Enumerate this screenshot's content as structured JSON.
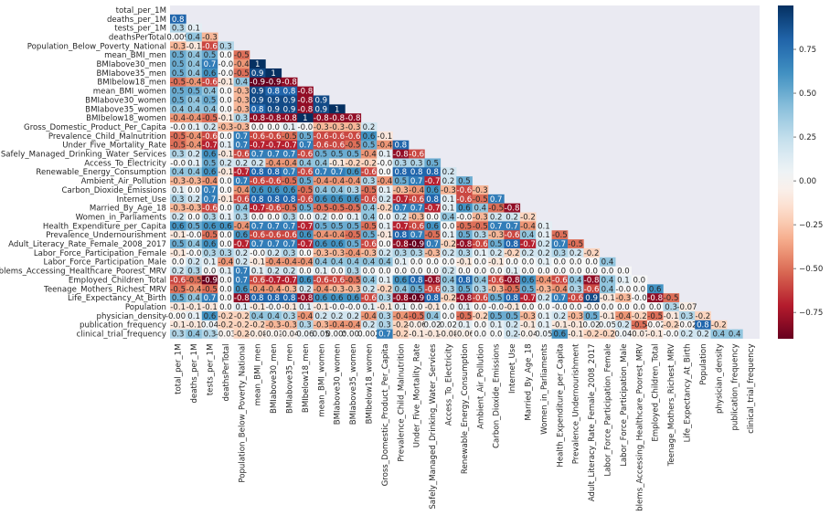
{
  "chart_data": {
    "type": "heatmap",
    "title": "",
    "variables": [
      "total_per_1M",
      "deaths_per_1M",
      "tests_per_1M",
      "deathsPerTotal",
      "Population_Below_Poverty_National",
      "mean_BMI_men",
      "BMIabove30_men",
      "BMIabove35_men",
      "BMIbelow18_men",
      "mean_BMI_women",
      "BMIabove30_women",
      "BMIabove35_women",
      "BMIbelow18_women",
      "Gross_Domestic_Product_Per_Capita",
      "Prevalence_Child_Malnutrition",
      "Under_Five_Mortality_Rate",
      "Safely_Managed_Drinking_Water_Services",
      "Access_To_Electricity",
      "Renewable_Energy_Consumption",
      "Ambient_Air_Pollution",
      "Carbon_Dioxide_Emissions",
      "Internet_Use",
      "Married_By_Age_18",
      "Women_in_Parliaments",
      "Health_Expenditure_per_Capita",
      "Prevalence_Undernourishment",
      "Adult_Literacy_Rate_Female_2008_2017",
      "Labor_Force_Participation_Female",
      "Labor_Force_Participation_Male",
      "Problems_Accessing_Healthcare_Poorest_MRV",
      "Employed_Children_Total",
      "Teenage_Mothers_Richest_MRV",
      "Life_Expectancy_At_Birth",
      "Population",
      "physician_density",
      "publication_frequency",
      "clinical_trial_frequency"
    ],
    "mask": "upper triangle including diagonal",
    "values": [
      [],
      [
        "0.8"
      ],
      [
        "0.3",
        "0.1"
      ],
      [
        "0.009",
        "0.4",
        "-0.3"
      ],
      [
        "-0.3",
        "-0.1",
        "-0.6",
        "0.3"
      ],
      [
        "0.5",
        "0.4",
        "0.5",
        "0.0",
        "-0.5"
      ],
      [
        "0.5",
        "0.4",
        "0.7",
        "-0.0",
        "-0.4",
        "1"
      ],
      [
        "0.5",
        "0.4",
        "0.6",
        "-0.0",
        "-0.5",
        "0.9",
        "1"
      ],
      [
        "-0.5",
        "-0.4",
        "-0.6",
        "-0.1",
        "0.4",
        "-0.9",
        "-0.9",
        "-0.8"
      ],
      [
        "0.5",
        "0.5",
        "0.4",
        "0.0",
        "-0.3",
        "0.9",
        "0.8",
        "0.8",
        "-0.8"
      ],
      [
        "0.5",
        "0.4",
        "0.5",
        "0.0",
        "-0.3",
        "0.9",
        "0.9",
        "0.9",
        "-0.8",
        "0.9"
      ],
      [
        "0.4",
        "0.4",
        "0.4",
        "0.0",
        "-0.3",
        "0.8",
        "0.9",
        "0.9",
        "-0.8",
        "0.9",
        "1"
      ],
      [
        "-0.4",
        "-0.4",
        "-0.5",
        "-0.1",
        "0.3",
        "-0.8",
        "-0.8",
        "-0.8",
        "1",
        "-0.8",
        "-0.8",
        "-0.8"
      ],
      [
        "-0.0",
        "0.1",
        "0.2",
        "-0.3",
        "-0.3",
        "0.0",
        "0.0",
        "0.1",
        "-0.0",
        "-0.3",
        "-0.3",
        "-0.3",
        "0.2"
      ],
      [
        "-0.5",
        "-0.4",
        "-0.6",
        "0.0",
        "0.7",
        "-0.6",
        "-0.6",
        "-0.5",
        "0.5",
        "-0.6",
        "-0.6",
        "-0.6",
        "0.6",
        "-0.1"
      ],
      [
        "-0.5",
        "-0.4",
        "-0.7",
        "0.1",
        "0.7",
        "-0.7",
        "-0.7",
        "-0.7",
        "0.7",
        "-0.6",
        "-0.6",
        "-0.5",
        "0.5",
        "-0.4",
        "0.8"
      ],
      [
        "0.3",
        "0.2",
        "0.6",
        "-0.1",
        "-0.6",
        "0.7",
        "0.7",
        "0.7",
        "-0.6",
        "0.5",
        "0.5",
        "0.5",
        "-0.4",
        "0.1",
        "-0.8",
        "-0.6"
      ],
      [
        "-0.0",
        "0.1",
        "0.5",
        "0.2",
        "0.2",
        "0.2",
        "-0.4",
        "-0.4",
        "0.4",
        "0.4",
        "-0.1",
        "-0.2",
        "-0.2",
        "-0.0",
        "0.3",
        "0.3",
        "0.5"
      ],
      [
        "0.4",
        "0.4",
        "0.6",
        "-0.1",
        "-0.7",
        "0.8",
        "0.8",
        "0.7",
        "-0.6",
        "0.7",
        "0.7",
        "0.6",
        "-0.6",
        "0.0",
        "0.8",
        "0.8",
        "0.8",
        "0.2"
      ],
      [
        "-0.3",
        "-0.3",
        "-0.4",
        "0.0",
        "0.7",
        "-0.6",
        "-0.6",
        "-0.5",
        "0.5",
        "-0.4",
        "-0.4",
        "-0.4",
        "0.3",
        "-0.4",
        "0.5",
        "0.7",
        "-0.7",
        "0.2",
        "0.5"
      ],
      [
        "0.1",
        "0.0",
        "0.7",
        "0.0",
        "-0.4",
        "0.6",
        "0.6",
        "0.6",
        "-0.5",
        "0.4",
        "0.4",
        "0.3",
        "-0.5",
        "0.1",
        "-0.3",
        "-0.4",
        "0.6",
        "-0.3",
        "-0.6",
        "-0.3"
      ],
      [
        "0.3",
        "0.2",
        "0.7",
        "-0.1",
        "-0.6",
        "0.8",
        "0.8",
        "0.8",
        "-0.6",
        "0.6",
        "0.6",
        "0.6",
        "-0.6",
        "0.2",
        "-0.7",
        "-0.6",
        "0.8",
        "0.1",
        "-0.6",
        "-0.5",
        "0.7"
      ],
      [
        "-0.3",
        "-0.3",
        "-0.6",
        "0.0",
        "0.4",
        "-0.7",
        "-0.6",
        "-0.5",
        "0.5",
        "-0.5",
        "-0.5",
        "-0.5",
        "0.4",
        "-0.2",
        "0.7",
        "0.7",
        "-0.7",
        "0.1",
        "0.6",
        "0.4",
        "-0.5",
        "-0.8"
      ],
      [
        "0.2",
        "0.0",
        "0.3",
        "0.1",
        "0.3",
        "0.0",
        "0.0",
        "0.3",
        "0.0",
        "0.2",
        "0.0",
        "0.1",
        "0.4",
        "0.0",
        "0.2",
        "-0.3",
        "0.0",
        "0.4",
        "-0.0",
        "-0.3",
        "0.2",
        "0.2",
        "-0.2"
      ],
      [
        "0.6",
        "0.5",
        "0.6",
        "0.6",
        "-0.4",
        "0.7",
        "0.7",
        "0.7",
        "-0.7",
        "0.5",
        "0.5",
        "0.5",
        "-0.5",
        "0.1",
        "-0.7",
        "-0.6",
        "0.6",
        "0.0",
        "-0.5",
        "-0.5",
        "0.7",
        "0.7",
        "-0.4",
        "0.1"
      ],
      [
        "-0.1",
        "-0.0",
        "-0.5",
        "0.0",
        "0.6",
        "-0.6",
        "-0.6",
        "-0.6",
        "0.6",
        "-0.4",
        "-0.4",
        "-0.5",
        "0.5",
        "-0.1",
        "0.8",
        "0.7",
        "-0.5",
        "0.1",
        "0.5",
        "0.3",
        "-0.3",
        "-0.6",
        "0.4",
        "0.1",
        "-0.5"
      ],
      [
        "0.5",
        "0.4",
        "0.6",
        "0.0",
        "-0.7",
        "0.7",
        "0.7",
        "0.7",
        "-0.7",
        "0.6",
        "0.6",
        "0.5",
        "-0.6",
        "0.0",
        "-0.8",
        "-0.9",
        "0.7",
        "-0.2",
        "-0.8",
        "-0.6",
        "0.5",
        "0.8",
        "-0.7",
        "0.2",
        "0.7",
        "-0.5"
      ],
      [
        "-0.1",
        "-0.0",
        "0.3",
        "0.3",
        "0.2",
        "-0.0",
        "0.2",
        "0.3",
        "0.0",
        "-0.3",
        "-0.3",
        "-0.4",
        "-0.3",
        "0.2",
        "0.3",
        "0.3",
        "-0.3",
        "0.2",
        "0.3",
        "0.1",
        "0.2",
        "-0.2",
        "0.2",
        "0.2",
        "0.3",
        "0.2",
        "-0.2"
      ],
      [
        "0.0",
        "0.2",
        "0.1",
        "-0.4",
        "0.2",
        "-0.1",
        "-0.4",
        "-0.4",
        "-0.4",
        "0.4",
        "0.4",
        "0.4",
        "0.4",
        "0.4",
        "0.1",
        "0.0",
        "0.0",
        "0.0",
        "-0.1",
        "0.0",
        "-0.1",
        "0.0",
        "0.0",
        "0.1",
        "0.0",
        "0.0",
        "0.0",
        "0.4"
      ],
      [
        "0.2",
        "0.3",
        "0.0",
        "0.1",
        "0.7",
        "0.1",
        "0.2",
        "0.2",
        "0.0",
        "0.1",
        "0.0",
        "0.3",
        "0.0",
        "0.0",
        "0.0",
        "0.0",
        "0.0",
        "0.2",
        "0.0",
        "0.0",
        "0.0",
        "0.1",
        "0.0",
        "0.0",
        "0.0",
        "0.0",
        "0.0",
        "0.0",
        "0.0"
      ],
      [
        "-0.6",
        "-0.5",
        "-0.9",
        "0.0",
        "0.7",
        "-0.6",
        "-0.7",
        "-0.7",
        "0.6",
        "-0.6",
        "-0.6",
        "-0.5",
        "0.4",
        "0.1",
        "0.6",
        "0.8",
        "-0.8",
        "0.4",
        "0.8",
        "0.4",
        "-0.6",
        "-0.8",
        "0.6",
        "-0.4",
        "-0.6",
        "0.4",
        "-0.8",
        "0.4",
        "0.1",
        "0.0"
      ],
      [
        "-0.5",
        "-0.4",
        "-0.5",
        "0.0",
        "0.6",
        "-0.4",
        "-0.4",
        "-0.3",
        "0.2",
        "-0.4",
        "-0.3",
        "-0.3",
        "0.2",
        "-0.2",
        "0.4",
        "0.5",
        "-0.6",
        "0.3",
        "0.5",
        "0.3",
        "-0.3",
        "-0.5",
        "0.5",
        "-0.3",
        "-0.4",
        "0.3",
        "-0.6",
        "0.4",
        "-0.0",
        "0.0",
        "0.6"
      ],
      [
        "0.5",
        "0.4",
        "0.7",
        "0.0",
        "-0.8",
        "0.8",
        "0.8",
        "0.8",
        "-0.8",
        "0.6",
        "0.6",
        "0.6",
        "-0.6",
        "0.3",
        "-0.8",
        "-0.9",
        "0.8",
        "-0.2",
        "-0.8",
        "-0.6",
        "0.5",
        "0.8",
        "-0.7",
        "0.2",
        "0.7",
        "-0.6",
        "0.9",
        "-0.1",
        "-0.3",
        "-0.0",
        "-0.8",
        "-0.5"
      ],
      [
        "-0.1",
        "-0.1",
        "-0.1",
        "0.0",
        "0.1",
        "-0.1",
        "-0.0",
        "-0.1",
        "0.1",
        "-0.1",
        "-0.0",
        "-0.0",
        "0.1",
        "-0.1",
        "0.1",
        "0.0",
        "-0.1",
        "0.0",
        "0.1",
        "0.0",
        "-0.0",
        "-0.1",
        "0.0",
        "0.0",
        "-0.0",
        "0.0",
        "-0.0",
        "0.0",
        "0.0",
        "0.0",
        "0.0",
        "0.3",
        "-0.07"
      ],
      [
        "-0.003",
        "0.1",
        "0.6",
        "-0.2",
        "-0.2",
        "0.4",
        "0.4",
        "0.3",
        "-0.4",
        "0.2",
        "0.2",
        "0.2",
        "-0.4",
        "0.3",
        "-0.4",
        "-0.5",
        "0.4",
        "0.0",
        "-0.5",
        "-0.2",
        "0.5",
        "0.5",
        "-0.3",
        "0.1",
        "0.2",
        "-0.3",
        "0.5",
        "-0.1",
        "-0.4",
        "-0.2",
        "-0.5",
        "-0.1",
        "0.3",
        "-0.2"
      ],
      [
        "-0.1",
        "-0.1",
        "0.04",
        "-0.2",
        "-0.2",
        "-0.2",
        "-0.3",
        "-0.3",
        "0.3",
        "-0.3",
        "-0.4",
        "-0.4",
        "0.2",
        "0.3",
        "-0.2",
        "-0.06",
        "0.02",
        "0.02",
        "0.1",
        "0.0",
        "0.1",
        "0.2",
        "-0.1",
        "0.1",
        "-0.1",
        "-0.1",
        "0.02",
        "0.05",
        "0.2",
        "-0.5",
        "-0.02",
        "-0.2",
        "-0.02",
        "0.8",
        "-0.2"
      ],
      [
        "0.3",
        "0.4",
        "0.3",
        "-0.03",
        "-0.2",
        "-0.08",
        "-0.03",
        "-0.04",
        "0.06",
        "0.05",
        "0.005",
        "0.003",
        "0.002",
        "0.7",
        "-0.2",
        "-0.1",
        "-0.1",
        "-0.08",
        "-0.06",
        "0.0",
        "0.0",
        "0.2",
        "-0.04",
        "0.05",
        "0.6",
        "-0.1",
        "-0.2",
        "-0.2",
        "0.04",
        "-0.07",
        "-0.1",
        "-0.0",
        "0.2",
        "0.2",
        "0.4",
        "0.4"
      ]
    ],
    "colorbar": {
      "range": [
        -0.9,
        1.0
      ],
      "ticks": [
        "0.75",
        "0.50",
        "0.25",
        "0.00",
        "−0.25",
        "−0.50",
        "−0.75"
      ]
    },
    "colormap": "diverging red-white-blue (RdBu)"
  }
}
